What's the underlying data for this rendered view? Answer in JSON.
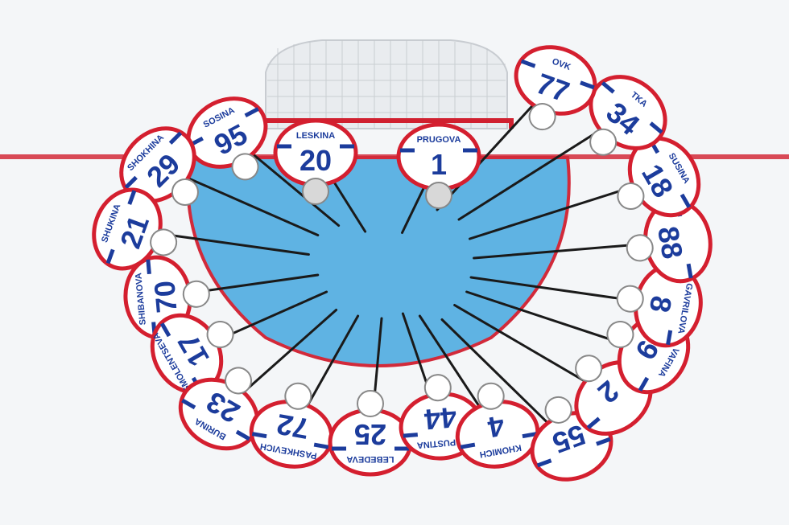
{
  "scene": {
    "subject": "overhead view of hockey team huddle around goal crease",
    "ice_color": "#f4f6f8",
    "crease_color": "#5fb3e3",
    "red_line_color": "#d22a3a",
    "jersey_white": "#ffffff",
    "jersey_blue": "#1c3c9c",
    "jersey_red": "#d41f2f",
    "net_frame_color": "#d0202f"
  },
  "players": [
    {
      "name": "LESKINA",
      "number": "20"
    },
    {
      "name": "PRUGOVA",
      "number": "1"
    },
    {
      "name": "SOSINA",
      "number": "95"
    },
    {
      "name": "SHOKHINA",
      "number": "29"
    },
    {
      "name": "SHUKINA",
      "number": "21"
    },
    {
      "name": "SHIBANOVA",
      "number": "70"
    },
    {
      "name": "SMOLENTSEVA",
      "number": "17"
    },
    {
      "name": "BURINA",
      "number": "23"
    },
    {
      "name": "PASHKEVICH",
      "number": "72"
    },
    {
      "name": "LEBEDEVA",
      "number": "25"
    },
    {
      "name": "KAPUSTINA",
      "number": "44"
    },
    {
      "name": "KHOMICH",
      "number": "4"
    },
    {
      "name": "",
      "number": "55"
    },
    {
      "name": "",
      "number": "2"
    },
    {
      "name": "VAFINA",
      "number": "9"
    },
    {
      "name": "GAVRILOVA",
      "number": "8"
    },
    {
      "name": "",
      "number": "88"
    },
    {
      "name": "SUSINA",
      "number": "18"
    },
    {
      "name": "TKA",
      "number": "34"
    },
    {
      "name": "OVK",
      "number": "77"
    }
  ]
}
